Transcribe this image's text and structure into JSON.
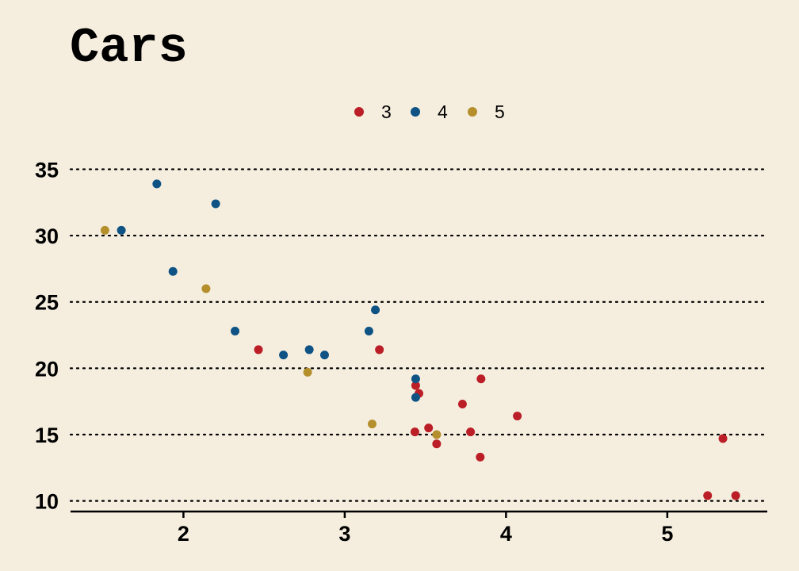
{
  "chart_data": {
    "type": "scatter",
    "title": "Cars",
    "xlabel": "",
    "ylabel": "",
    "xlim": [
      1.3,
      5.62
    ],
    "ylim": [
      9.2,
      37
    ],
    "x_ticks": [
      2,
      3,
      4,
      5
    ],
    "y_ticks": [
      10,
      15,
      20,
      25,
      30,
      35
    ],
    "grid": "horizontal-dotted",
    "legend_position": "top-center",
    "series": [
      {
        "name": "3",
        "color": "#bb1e26",
        "points": [
          [
            2.465,
            21.4
          ],
          [
            3.215,
            21.4
          ],
          [
            3.44,
            18.7
          ],
          [
            3.46,
            18.1
          ],
          [
            3.57,
            14.3
          ],
          [
            4.07,
            16.4
          ],
          [
            3.73,
            17.3
          ],
          [
            3.78,
            15.2
          ],
          [
            5.25,
            10.4
          ],
          [
            5.424,
            10.4
          ],
          [
            5.345,
            14.7
          ],
          [
            3.52,
            15.5
          ],
          [
            3.435,
            15.2
          ],
          [
            3.84,
            13.3
          ],
          [
            3.845,
            19.2
          ]
        ]
      },
      {
        "name": "4",
        "color": "#0e5384",
        "points": [
          [
            2.62,
            21.0
          ],
          [
            2.875,
            21.0
          ],
          [
            2.32,
            22.8
          ],
          [
            3.19,
            24.4
          ],
          [
            3.15,
            22.8
          ],
          [
            3.44,
            19.2
          ],
          [
            3.44,
            17.8
          ],
          [
            2.2,
            32.4
          ],
          [
            1.615,
            30.4
          ],
          [
            1.835,
            33.9
          ],
          [
            1.935,
            27.3
          ],
          [
            2.78,
            21.4
          ]
        ]
      },
      {
        "name": "5",
        "color": "#b58f2b",
        "points": [
          [
            2.14,
            26.0
          ],
          [
            1.513,
            30.4
          ],
          [
            3.17,
            15.8
          ],
          [
            2.77,
            19.7
          ],
          [
            3.57,
            15.0
          ]
        ]
      }
    ]
  }
}
